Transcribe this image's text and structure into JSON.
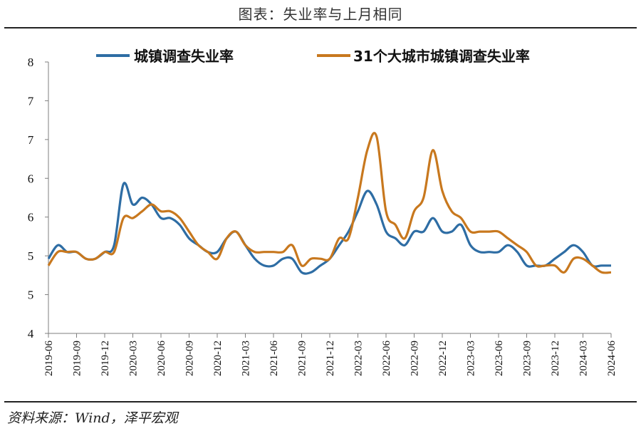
{
  "title": "图表：失业率与上月相同",
  "source": "资料来源：Wind，泽平宏观",
  "colors": {
    "series1": "#2e6da4",
    "series2": "#c8781e",
    "axis": "#7f7f7f"
  },
  "chart_data": {
    "type": "line",
    "title": "图表：失业率与上月相同",
    "xlabel": "",
    "ylabel": "",
    "y_tick_labels": [
      "4",
      "5",
      "5",
      "6",
      "6",
      "7",
      "7",
      "8"
    ],
    "ylim": [
      4,
      8
    ],
    "grid": false,
    "legend_position": "top",
    "x_tick_labels": [
      "2019-06",
      "2019-09",
      "2019-12",
      "2020-03",
      "2020-06",
      "2020-09",
      "2020-12",
      "2021-03",
      "2021-06",
      "2021-09",
      "2021-12",
      "2022-03",
      "2022-06",
      "2022-09",
      "2022-12",
      "2023-03",
      "2023-06",
      "2023-09",
      "2023-12",
      "2024-03",
      "2024-06"
    ],
    "x": [
      "2019-06",
      "2019-07",
      "2019-08",
      "2019-09",
      "2019-10",
      "2019-11",
      "2019-12",
      "2020-01",
      "2020-02",
      "2020-03",
      "2020-04",
      "2020-05",
      "2020-06",
      "2020-07",
      "2020-08",
      "2020-09",
      "2020-10",
      "2020-11",
      "2020-12",
      "2021-01",
      "2021-02",
      "2021-03",
      "2021-04",
      "2021-05",
      "2021-06",
      "2021-07",
      "2021-08",
      "2021-09",
      "2021-10",
      "2021-11",
      "2021-12",
      "2022-01",
      "2022-02",
      "2022-03",
      "2022-04",
      "2022-05",
      "2022-06",
      "2022-07",
      "2022-08",
      "2022-09",
      "2022-10",
      "2022-11",
      "2022-12",
      "2023-01",
      "2023-02",
      "2023-03",
      "2023-04",
      "2023-05",
      "2023-06",
      "2023-07",
      "2023-08",
      "2023-09",
      "2023-10",
      "2023-11",
      "2023-12",
      "2024-01",
      "2024-02",
      "2024-03",
      "2024-04",
      "2024-05",
      "2024-06"
    ],
    "series": [
      {
        "name": "城镇调查失业率",
        "values": [
          5.1,
          5.3,
          5.2,
          5.2,
          5.1,
          5.1,
          5.2,
          5.3,
          6.2,
          5.9,
          6.0,
          5.9,
          5.7,
          5.7,
          5.6,
          5.4,
          5.3,
          5.2,
          5.2,
          5.4,
          5.5,
          5.3,
          5.1,
          5.0,
          5.0,
          5.1,
          5.1,
          4.9,
          4.9,
          5.0,
          5.1,
          5.3,
          5.5,
          5.8,
          6.1,
          5.9,
          5.5,
          5.4,
          5.3,
          5.5,
          5.5,
          5.7,
          5.5,
          5.5,
          5.6,
          5.3,
          5.2,
          5.2,
          5.2,
          5.3,
          5.2,
          5.0,
          5.0,
          5.0,
          5.1,
          5.2,
          5.3,
          5.2,
          5.0,
          5.0,
          5.0
        ]
      },
      {
        "name": "31个大城市城镇调查失业率",
        "values": [
          5.0,
          5.2,
          5.2,
          5.2,
          5.1,
          5.1,
          5.2,
          5.2,
          5.7,
          5.7,
          5.8,
          5.9,
          5.8,
          5.8,
          5.7,
          5.5,
          5.3,
          5.2,
          5.1,
          5.4,
          5.5,
          5.3,
          5.2,
          5.2,
          5.2,
          5.2,
          5.3,
          5.0,
          5.1,
          5.1,
          5.1,
          5.4,
          5.4,
          6.0,
          6.7,
          6.9,
          5.8,
          5.6,
          5.4,
          5.8,
          6.0,
          6.7,
          6.1,
          5.8,
          5.7,
          5.5,
          5.5,
          5.5,
          5.5,
          5.4,
          5.3,
          5.2,
          5.0,
          5.0,
          5.0,
          4.9,
          5.1,
          5.1,
          5.0,
          4.9,
          4.9
        ]
      }
    ]
  }
}
